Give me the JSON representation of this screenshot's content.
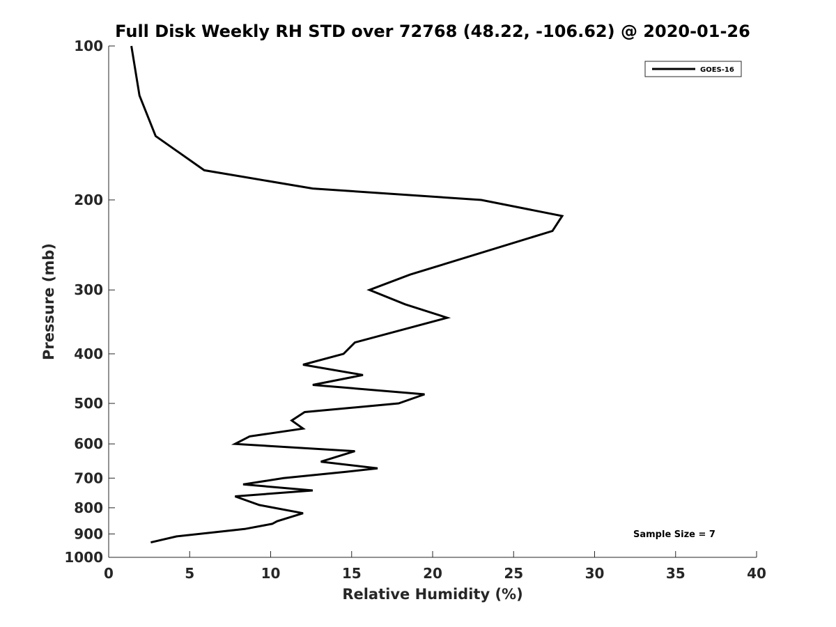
{
  "chart_data": {
    "type": "line",
    "title": "Full Disk Weekly RH STD over 72768 (48.22, -106.62) @ 2020-01-26",
    "xlabel": "Relative Humidity (%)",
    "ylabel": "Pressure (mb)",
    "xlim": [
      0,
      40
    ],
    "ylim": [
      100,
      1000
    ],
    "y_scale": "log",
    "y_reversed": true,
    "x_ticks": [
      0,
      5,
      10,
      15,
      20,
      25,
      30,
      35,
      40
    ],
    "x_tick_labels": [
      "0",
      "5",
      "10",
      "15",
      "20",
      "25",
      "30",
      "35",
      "40"
    ],
    "y_ticks": [
      100,
      200,
      300,
      400,
      500,
      600,
      700,
      800,
      900,
      1000
    ],
    "y_tick_labels": [
      "100",
      "200",
      "300",
      "400",
      "500",
      "600",
      "700",
      "800",
      "900",
      "1000"
    ],
    "grid": false,
    "legend_position": "top-right",
    "series": [
      {
        "name": "GOES-16",
        "color": "#000000",
        "x": [
          1.4,
          1.9,
          2.9,
          5.9,
          12.6,
          23.0,
          28.0,
          27.4,
          18.6,
          16.1,
          18.3,
          20.9,
          15.2,
          14.5,
          12.0,
          15.7,
          12.6,
          19.5,
          17.9,
          12.1,
          11.3,
          12.0,
          8.7,
          7.8,
          15.2,
          13.1,
          16.6,
          14.7,
          10.8,
          8.3,
          12.6,
          7.8,
          9.3,
          12.0,
          10.4,
          10.1,
          8.4,
          4.2,
          2.6
        ],
        "y": [
          100,
          125,
          150,
          175,
          190,
          200,
          215,
          230,
          280,
          300,
          320,
          340,
          380,
          400,
          420,
          440,
          460,
          480,
          500,
          520,
          540,
          560,
          580,
          600,
          620,
          650,
          670,
          680,
          700,
          720,
          740,
          760,
          790,
          820,
          850,
          860,
          880,
          910,
          935
        ]
      }
    ],
    "annotation": "Sample Size = 7"
  }
}
